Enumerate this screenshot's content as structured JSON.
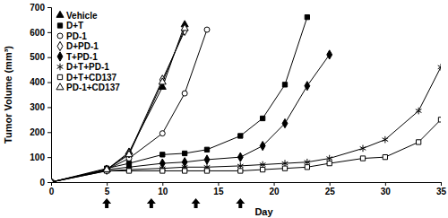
{
  "chart_data": {
    "type": "line",
    "x_label": "Day",
    "y_label": "Tumor Volume (mm³)",
    "xlim": [
      0,
      35
    ],
    "xticks": [
      0,
      5,
      10,
      15,
      20,
      25,
      30,
      35
    ],
    "ylim": [
      0,
      700
    ],
    "yticks": [
      0,
      100,
      200,
      300,
      400,
      500,
      600,
      700
    ],
    "grid": false,
    "legend": "top-left",
    "treatment_days": [
      5,
      9,
      13,
      17
    ],
    "series": [
      {
        "name": "Vehicle",
        "color": "#000000",
        "marker": "triangle",
        "x": [
          0,
          5,
          7,
          10,
          12
        ],
        "values": [
          0,
          50,
          120,
          380,
          630
        ]
      },
      {
        "name": "D+T",
        "color": "#000000",
        "marker": "square",
        "x": [
          0,
          5,
          7,
          10,
          12,
          14,
          17,
          19,
          21,
          23
        ],
        "values": [
          0,
          55,
          75,
          110,
          115,
          130,
          185,
          255,
          390,
          660
        ]
      },
      {
        "name": "PD-1",
        "color": "#000000",
        "marker": "circle-open",
        "x": [
          0,
          5,
          7,
          10,
          12,
          14
        ],
        "values": [
          0,
          50,
          95,
          195,
          355,
          610
        ]
      },
      {
        "name": "D+PD-1",
        "color": "#000000",
        "marker": "diamond-open",
        "x": [
          0,
          5,
          7,
          10,
          12
        ],
        "values": [
          0,
          50,
          115,
          410,
          605
        ]
      },
      {
        "name": "T+PD-1",
        "color": "#000000",
        "marker": "diamond",
        "x": [
          0,
          5,
          7,
          10,
          12,
          14,
          17,
          19,
          21,
          23,
          25
        ],
        "values": [
          0,
          50,
          60,
          75,
          80,
          90,
          100,
          145,
          235,
          385,
          510
        ]
      },
      {
        "name": "D+T+PD-1",
        "color": "#000000",
        "marker": "asterisk",
        "x": [
          0,
          5,
          7,
          10,
          12,
          14,
          17,
          19,
          21,
          23,
          25,
          28,
          30,
          33,
          35
        ],
        "values": [
          0,
          45,
          50,
          55,
          60,
          60,
          65,
          70,
          75,
          80,
          95,
          135,
          170,
          285,
          460
        ]
      },
      {
        "name": "D+T+CD137",
        "color": "#000000",
        "marker": "square-open",
        "x": [
          0,
          5,
          7,
          10,
          12,
          14,
          17,
          19,
          21,
          23,
          25,
          28,
          30,
          33,
          35
        ],
        "values": [
          0,
          45,
          45,
          45,
          45,
          45,
          45,
          50,
          55,
          60,
          75,
          95,
          100,
          160,
          250
        ]
      },
      {
        "name": "PD-1+CD137",
        "color": "#000000",
        "marker": "triangle-open",
        "x": [
          0,
          5,
          7,
          10,
          12
        ],
        "values": [
          0,
          50,
          110,
          400,
          615
        ]
      }
    ]
  }
}
